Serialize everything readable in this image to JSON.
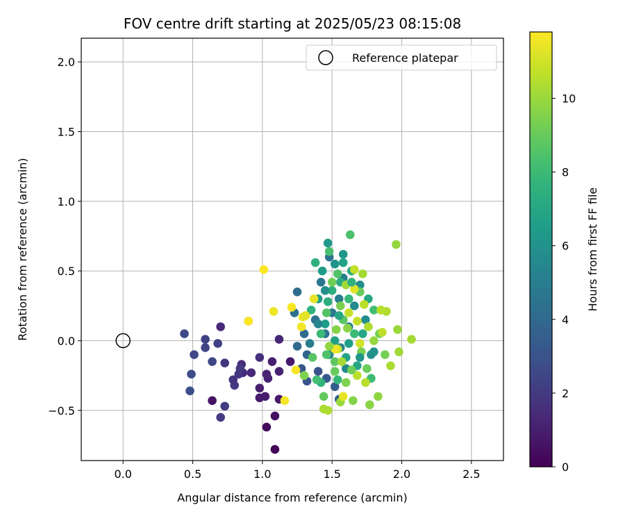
{
  "chart_data": {
    "type": "scatter",
    "title": "FOV centre drift starting at 2025/05/23 08:15:08",
    "xlabel": "Angular distance from reference (arcmin)",
    "ylabel": "Rotation from reference (arcmin)",
    "xlim": [
      -0.3,
      2.73
    ],
    "ylim": [
      -0.86,
      2.17
    ],
    "xticks": [
      0.0,
      0.5,
      1.0,
      1.5,
      2.0,
      2.5
    ],
    "xtick_labels": [
      "0.0",
      "0.5",
      "1.0",
      "1.5",
      "2.0",
      "2.5"
    ],
    "yticks": [
      -0.5,
      0.0,
      0.5,
      1.0,
      1.5,
      2.0
    ],
    "ytick_labels": [
      "−0.5",
      "0.0",
      "0.5",
      "1.0",
      "1.5",
      "2.0"
    ],
    "grid": true,
    "legend": {
      "placement": "top-right",
      "entries": [
        {
          "label": "Reference platepar",
          "marker": "open-circle"
        }
      ]
    },
    "reference_point": {
      "x": 0.0,
      "y": 0.0
    },
    "colorbar": {
      "label": "Hours from first FF file",
      "colormap": "viridis",
      "range": [
        0,
        11.8
      ],
      "ticks": [
        0,
        2,
        4,
        6,
        8,
        10
      ],
      "tick_labels": [
        "0",
        "2",
        "4",
        "6",
        "8",
        "10"
      ]
    },
    "points": [
      {
        "x": 1.09,
        "y": -0.78,
        "c": 0.1
      },
      {
        "x": 1.03,
        "y": -0.62,
        "c": 0.3
      },
      {
        "x": 1.09,
        "y": -0.54,
        "c": 0.4
      },
      {
        "x": 0.64,
        "y": -0.43,
        "c": 0.6
      },
      {
        "x": 1.12,
        "y": -0.42,
        "c": 0.7
      },
      {
        "x": 0.98,
        "y": -0.41,
        "c": 0.8
      },
      {
        "x": 1.02,
        "y": -0.4,
        "c": 0.9
      },
      {
        "x": 0.98,
        "y": -0.34,
        "c": 1.0
      },
      {
        "x": 1.04,
        "y": -0.27,
        "c": 1.1
      },
      {
        "x": 1.03,
        "y": -0.24,
        "c": 1.2
      },
      {
        "x": 0.92,
        "y": -0.23,
        "c": 1.3
      },
      {
        "x": 0.86,
        "y": -0.23,
        "c": 1.4
      },
      {
        "x": 0.85,
        "y": -0.17,
        "c": 1.5
      },
      {
        "x": 0.98,
        "y": -0.12,
        "c": 1.6
      },
      {
        "x": 1.07,
        "y": -0.15,
        "c": 1.0
      },
      {
        "x": 1.2,
        "y": -0.15,
        "c": 0.8
      },
      {
        "x": 1.12,
        "y": -0.22,
        "c": 1.1
      },
      {
        "x": 1.12,
        "y": 0.01,
        "c": 1.2
      },
      {
        "x": 0.9,
        "y": 0.14,
        "c": 0.9
      },
      {
        "x": 0.7,
        "y": 0.1,
        "c": 1.3
      },
      {
        "x": 0.83,
        "y": -0.24,
        "c": 1.8
      },
      {
        "x": 0.8,
        "y": -0.32,
        "c": 1.9
      },
      {
        "x": 0.79,
        "y": -0.28,
        "c": 1.8
      },
      {
        "x": 0.84,
        "y": -0.2,
        "c": 2.0
      },
      {
        "x": 0.73,
        "y": -0.16,
        "c": 1.9
      },
      {
        "x": 0.7,
        "y": -0.55,
        "c": 2.0
      },
      {
        "x": 0.73,
        "y": -0.47,
        "c": 2.1
      },
      {
        "x": 0.68,
        "y": -0.02,
        "c": 2.2
      },
      {
        "x": 0.59,
        "y": 0.01,
        "c": 2.3
      },
      {
        "x": 0.59,
        "y": -0.05,
        "c": 2.4
      },
      {
        "x": 0.64,
        "y": -0.15,
        "c": 2.5
      },
      {
        "x": 0.51,
        "y": -0.1,
        "c": 2.5
      },
      {
        "x": 0.44,
        "y": 0.05,
        "c": 2.6
      },
      {
        "x": 0.49,
        "y": -0.24,
        "c": 2.7
      },
      {
        "x": 0.48,
        "y": -0.36,
        "c": 2.8
      },
      {
        "x": 1.32,
        "y": -0.29,
        "c": 3.1
      },
      {
        "x": 1.28,
        "y": -0.2,
        "c": 3.2
      },
      {
        "x": 1.4,
        "y": -0.22,
        "c": 3.0
      },
      {
        "x": 1.46,
        "y": -0.27,
        "c": 3.3
      },
      {
        "x": 1.52,
        "y": -0.33,
        "c": 3.5
      },
      {
        "x": 1.55,
        "y": -0.42,
        "c": 3.6
      },
      {
        "x": 1.32,
        "y": -0.1,
        "c": 3.8
      },
      {
        "x": 1.25,
        "y": -0.04,
        "c": 4.0
      },
      {
        "x": 1.3,
        "y": 0.05,
        "c": 4.1
      },
      {
        "x": 1.25,
        "y": 0.35,
        "c": 4.2
      },
      {
        "x": 1.23,
        "y": 0.2,
        "c": 4.3
      },
      {
        "x": 1.38,
        "y": 0.15,
        "c": 4.4
      },
      {
        "x": 1.45,
        "y": 0.05,
        "c": 4.5
      },
      {
        "x": 1.48,
        "y": 0.6,
        "c": 4.6
      },
      {
        "x": 1.42,
        "y": 0.42,
        "c": 4.7
      },
      {
        "x": 1.5,
        "y": 0.2,
        "c": 4.8
      },
      {
        "x": 1.55,
        "y": 0.3,
        "c": 5.0
      },
      {
        "x": 1.58,
        "y": 0.45,
        "c": 5.1
      },
      {
        "x": 1.62,
        "y": 0.1,
        "c": 5.2
      },
      {
        "x": 1.56,
        "y": -0.05,
        "c": 5.3
      },
      {
        "x": 1.48,
        "y": -0.1,
        "c": 5.4
      },
      {
        "x": 1.6,
        "y": -0.2,
        "c": 5.5
      },
      {
        "x": 1.66,
        "y": 0.25,
        "c": 5.6
      },
      {
        "x": 1.7,
        "y": 0.4,
        "c": 5.7
      },
      {
        "x": 1.74,
        "y": 0.15,
        "c": 5.8
      },
      {
        "x": 1.78,
        "y": -0.1,
        "c": 5.9
      },
      {
        "x": 1.8,
        "y": -0.08,
        "c": 6.0
      },
      {
        "x": 1.52,
        "y": 0.55,
        "c": 6.1
      },
      {
        "x": 1.58,
        "y": 0.62,
        "c": 6.2
      },
      {
        "x": 1.47,
        "y": 0.7,
        "c": 6.3
      },
      {
        "x": 1.43,
        "y": 0.5,
        "c": 6.4
      },
      {
        "x": 1.4,
        "y": 0.3,
        "c": 6.5
      },
      {
        "x": 1.45,
        "y": 0.12,
        "c": 6.6
      },
      {
        "x": 1.52,
        "y": 0.0,
        "c": 6.7
      },
      {
        "x": 1.6,
        "y": -0.12,
        "c": 6.8
      },
      {
        "x": 1.68,
        "y": -0.18,
        "c": 6.9
      },
      {
        "x": 1.72,
        "y": 0.05,
        "c": 7.0
      },
      {
        "x": 1.76,
        "y": 0.3,
        "c": 7.1
      },
      {
        "x": 1.64,
        "y": 0.5,
        "c": 7.2
      },
      {
        "x": 1.56,
        "y": 0.42,
        "c": 7.3
      },
      {
        "x": 1.5,
        "y": 0.36,
        "c": 7.4
      },
      {
        "x": 1.38,
        "y": 0.56,
        "c": 7.5
      },
      {
        "x": 1.35,
        "y": 0.22,
        "c": 7.6
      },
      {
        "x": 1.42,
        "y": -0.3,
        "c": 7.7
      },
      {
        "x": 1.54,
        "y": -0.28,
        "c": 7.8
      },
      {
        "x": 1.62,
        "y": 0.3,
        "c": 7.9
      },
      {
        "x": 1.66,
        "y": 0.05,
        "c": 8.0
      },
      {
        "x": 1.78,
        "y": -0.27,
        "c": 8.1
      },
      {
        "x": 1.8,
        "y": 0.22,
        "c": 8.2
      },
      {
        "x": 1.48,
        "y": 0.64,
        "c": 8.3
      },
      {
        "x": 1.63,
        "y": 0.76,
        "c": 8.4
      },
      {
        "x": 1.54,
        "y": 0.48,
        "c": 8.5
      },
      {
        "x": 1.46,
        "y": 0.2,
        "c": 8.6
      },
      {
        "x": 1.58,
        "y": 0.15,
        "c": 8.7
      },
      {
        "x": 1.52,
        "y": -0.15,
        "c": 8.8
      },
      {
        "x": 1.44,
        "y": -0.4,
        "c": 8.9
      },
      {
        "x": 1.7,
        "y": 0.35,
        "c": 9.0
      },
      {
        "x": 1.75,
        "y": -0.2,
        "c": 9.1
      },
      {
        "x": 1.84,
        "y": 0.05,
        "c": 9.2
      },
      {
        "x": 1.88,
        "y": -0.1,
        "c": 9.3
      },
      {
        "x": 1.56,
        "y": 0.25,
        "c": 9.4
      },
      {
        "x": 1.6,
        "y": -0.3,
        "c": 9.5
      },
      {
        "x": 1.65,
        "y": -0.43,
        "c": 9.6
      },
      {
        "x": 1.77,
        "y": -0.46,
        "c": 9.7
      },
      {
        "x": 1.83,
        "y": -0.4,
        "c": 9.8
      },
      {
        "x": 1.96,
        "y": 0.69,
        "c": 9.9
      },
      {
        "x": 1.97,
        "y": 0.08,
        "c": 10.0
      },
      {
        "x": 1.98,
        "y": -0.08,
        "c": 10.1
      },
      {
        "x": 2.07,
        "y": 0.01,
        "c": 10.2
      },
      {
        "x": 1.92,
        "y": -0.18,
        "c": 10.3
      },
      {
        "x": 1.89,
        "y": 0.21,
        "c": 10.4
      },
      {
        "x": 1.85,
        "y": 0.22,
        "c": 10.5
      },
      {
        "x": 1.86,
        "y": 0.06,
        "c": 10.6
      },
      {
        "x": 1.66,
        "y": 0.51,
        "c": 10.7
      },
      {
        "x": 1.72,
        "y": 0.48,
        "c": 10.2
      },
      {
        "x": 1.56,
        "y": -0.44,
        "c": 10.0
      },
      {
        "x": 1.47,
        "y": -0.5,
        "c": 10.4
      },
      {
        "x": 1.44,
        "y": -0.49,
        "c": 10.3
      },
      {
        "x": 1.74,
        "y": -0.3,
        "c": 10.5
      },
      {
        "x": 1.68,
        "y": -0.25,
        "c": 10.6
      },
      {
        "x": 1.6,
        "y": 0.4,
        "c": 10.1
      },
      {
        "x": 1.54,
        "y": -0.06,
        "c": 10.9
      },
      {
        "x": 1.62,
        "y": 0.2,
        "c": 10.8
      },
      {
        "x": 1.7,
        "y": -0.02,
        "c": 11.0
      },
      {
        "x": 1.66,
        "y": 0.37,
        "c": 11.2
      },
      {
        "x": 1.37,
        "y": 0.3,
        "c": 11.4
      },
      {
        "x": 1.29,
        "y": 0.17,
        "c": 11.5
      },
      {
        "x": 1.28,
        "y": 0.1,
        "c": 11.6
      },
      {
        "x": 1.24,
        "y": -0.21,
        "c": 11.7
      },
      {
        "x": 1.21,
        "y": 0.24,
        "c": 11.7
      },
      {
        "x": 1.16,
        "y": -0.43,
        "c": 11.6
      },
      {
        "x": 1.08,
        "y": 0.21,
        "c": 11.5
      },
      {
        "x": 1.01,
        "y": 0.51,
        "c": 11.8
      },
      {
        "x": 0.9,
        "y": 0.14,
        "c": 11.8
      },
      {
        "x": 1.31,
        "y": 0.18,
        "c": 11.3
      },
      {
        "x": 1.52,
        "y": -0.06,
        "c": 11.6
      },
      {
        "x": 1.58,
        "y": -0.4,
        "c": 11.4
      },
      {
        "x": 1.5,
        "y": 0.42,
        "c": 9.2
      },
      {
        "x": 1.53,
        "y": 0.08,
        "c": 9.6
      },
      {
        "x": 1.48,
        "y": -0.04,
        "c": 9.8
      },
      {
        "x": 1.57,
        "y": -0.15,
        "c": 10.2
      },
      {
        "x": 1.61,
        "y": 0.09,
        "c": 9.7
      },
      {
        "x": 1.68,
        "y": 0.14,
        "c": 10.8
      },
      {
        "x": 1.73,
        "y": 0.26,
        "c": 10.6
      },
      {
        "x": 1.76,
        "y": 0.1,
        "c": 10.4
      },
      {
        "x": 1.8,
        "y": 0.0,
        "c": 9.9
      },
      {
        "x": 1.71,
        "y": -0.08,
        "c": 9.4
      },
      {
        "x": 1.64,
        "y": -0.21,
        "c": 9.1
      },
      {
        "x": 1.52,
        "y": -0.22,
        "c": 9.0
      },
      {
        "x": 1.46,
        "y": -0.1,
        "c": 8.5
      },
      {
        "x": 1.42,
        "y": 0.05,
        "c": 8.0
      },
      {
        "x": 1.47,
        "y": 0.28,
        "c": 7.4
      },
      {
        "x": 1.55,
        "y": 0.18,
        "c": 7.0
      },
      {
        "x": 1.62,
        "y": -0.02,
        "c": 6.6
      },
      {
        "x": 1.7,
        "y": -0.12,
        "c": 6.2
      },
      {
        "x": 1.45,
        "y": 0.36,
        "c": 5.8
      },
      {
        "x": 1.4,
        "y": 0.12,
        "c": 5.4
      },
      {
        "x": 1.34,
        "y": -0.02,
        "c": 5.0
      },
      {
        "x": 1.58,
        "y": 0.56,
        "c": 6.8
      },
      {
        "x": 1.64,
        "y": 0.42,
        "c": 7.6
      },
      {
        "x": 1.36,
        "y": -0.12,
        "c": 8.7
      },
      {
        "x": 1.39,
        "y": -0.28,
        "c": 8.2
      },
      {
        "x": 1.3,
        "y": -0.25,
        "c": 9.5
      }
    ]
  }
}
